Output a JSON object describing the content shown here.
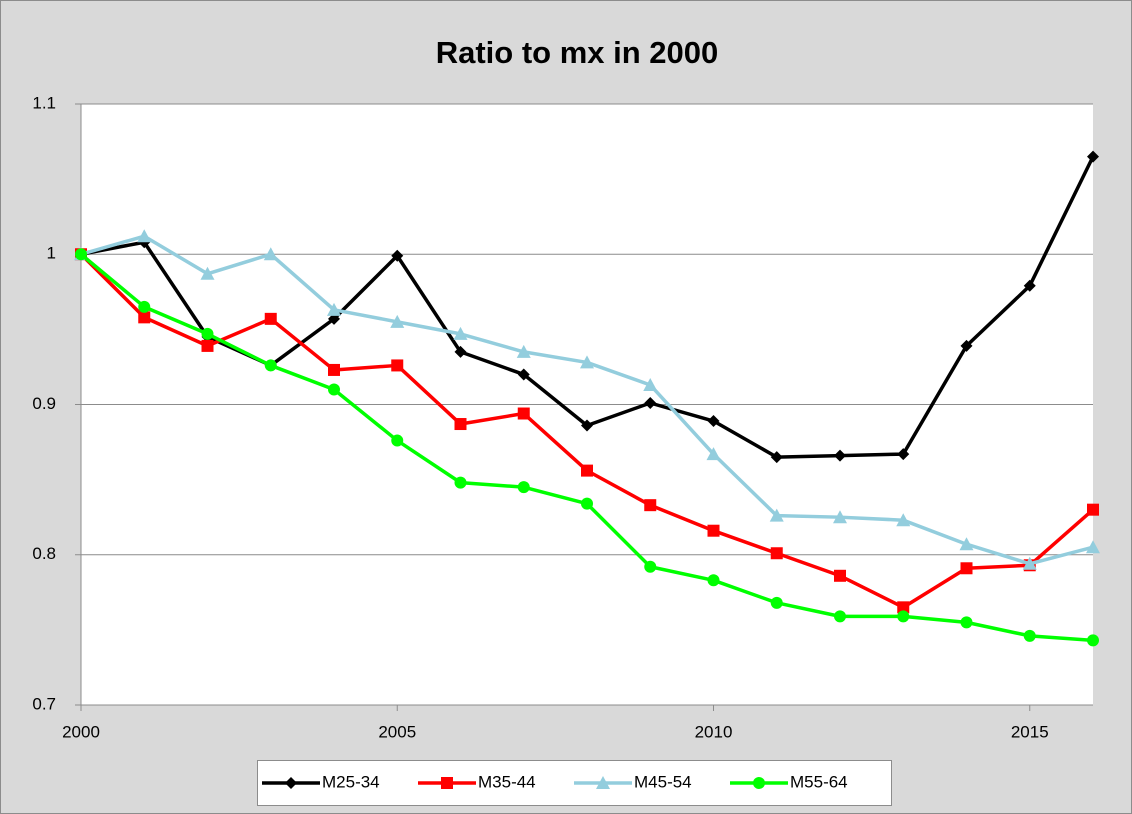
{
  "chart_data": {
    "type": "line",
    "title": "Ratio to mx in 2000",
    "x": [
      2000,
      2001,
      2002,
      2003,
      2004,
      2005,
      2006,
      2007,
      2008,
      2009,
      2010,
      2011,
      2012,
      2013,
      2014,
      2015,
      2016
    ],
    "xlim": [
      2000,
      2016
    ],
    "xticks": [
      2000,
      2005,
      2010,
      2015
    ],
    "ylim": [
      0.7,
      1.1
    ],
    "yticks": [
      0.7,
      0.8,
      0.9,
      1,
      1.1
    ],
    "grid": true,
    "legend": "bottom",
    "series": [
      {
        "name": "M25-34",
        "color": "#000000",
        "marker": "diamond",
        "values": [
          1.0,
          1.008,
          0.945,
          0.926,
          0.957,
          0.999,
          0.935,
          0.92,
          0.886,
          0.901,
          0.889,
          0.865,
          0.866,
          0.867,
          0.939,
          0.979,
          1.065
        ]
      },
      {
        "name": "M35-44",
        "color": "#ff0000",
        "marker": "square",
        "values": [
          1.0,
          0.958,
          0.939,
          0.957,
          0.923,
          0.926,
          0.887,
          0.894,
          0.856,
          0.833,
          0.816,
          0.801,
          0.786,
          0.765,
          0.791,
          0.793,
          0.83
        ]
      },
      {
        "name": "M45-54",
        "color": "#93cddd",
        "marker": "triangle",
        "values": [
          1.0,
          1.012,
          0.987,
          1.0,
          0.963,
          0.955,
          0.947,
          0.935,
          0.928,
          0.913,
          0.867,
          0.826,
          0.825,
          0.823,
          0.807,
          0.794,
          0.805
        ]
      },
      {
        "name": "M55-64",
        "color": "#00ff00",
        "marker": "circle",
        "values": [
          1.0,
          0.965,
          0.947,
          0.926,
          0.91,
          0.876,
          0.848,
          0.845,
          0.834,
          0.792,
          0.783,
          0.768,
          0.759,
          0.759,
          0.755,
          0.746,
          0.743
        ]
      }
    ]
  }
}
